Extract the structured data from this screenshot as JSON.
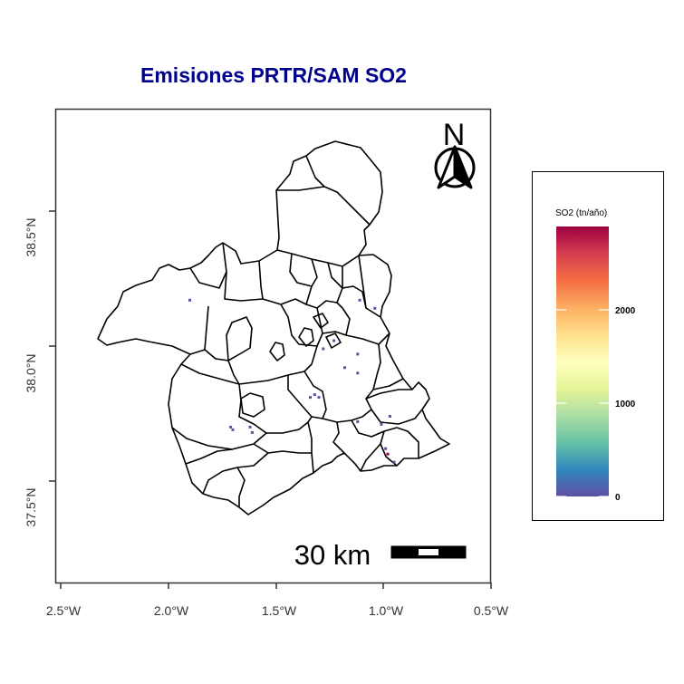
{
  "title": "Emisiones PRTR/SAM SO2",
  "axes": {
    "x_ticks": [
      "2.5°W",
      "2.0°W",
      "1.5°W",
      "1.0°W",
      "0.5°W"
    ],
    "y_ticks": [
      "37.5°N",
      "38.0°N",
      "38.5°N"
    ]
  },
  "north_arrow": {
    "label": "N",
    "icon": "north-arrow-icon"
  },
  "scale_bar": {
    "label": "30 km"
  },
  "legend": {
    "title": "SO2 (tn/año)",
    "ticks": [
      "0",
      "1000",
      "2000"
    ],
    "colors": [
      "#5e4fa2",
      "#3288bd",
      "#66c2a5",
      "#abdda4",
      "#e6f598",
      "#ffffbf",
      "#fee08b",
      "#fdae61",
      "#f46d43",
      "#d53e4f",
      "#9e0142"
    ]
  },
  "colors": {
    "title": "#00008b",
    "boundary": "#000000",
    "point_low": "#5e4fa2"
  },
  "chart_data": {
    "type": "map",
    "title": "Emisiones PRTR/SAM SO2",
    "region": "Región de Murcia (municipal boundaries)",
    "xlim": [
      -2.5,
      -0.5
    ],
    "ylim": [
      37.5,
      38.5
    ],
    "legend_title": "SO2 (tn/año)",
    "color_range": [
      0,
      2900
    ],
    "points_so2": [
      {
        "lon": -1.9,
        "lat": 38.17,
        "so2": 5
      },
      {
        "lon": -1.11,
        "lat": 38.17,
        "so2": 5
      },
      {
        "lon": -1.04,
        "lat": 38.14,
        "so2": 5
      },
      {
        "lon": -1.23,
        "lat": 38.02,
        "so2": 5
      },
      {
        "lon": -1.28,
        "lat": 37.99,
        "so2": 5
      },
      {
        "lon": -1.12,
        "lat": 37.97,
        "so2": 5
      },
      {
        "lon": -1.18,
        "lat": 37.92,
        "so2": 5
      },
      {
        "lon": -1.12,
        "lat": 37.9,
        "so2": 5
      },
      {
        "lon": -1.32,
        "lat": 37.82,
        "so2": 5
      },
      {
        "lon": -1.34,
        "lat": 37.81,
        "so2": 5
      },
      {
        "lon": -1.3,
        "lat": 37.81,
        "so2": 5
      },
      {
        "lon": -1.71,
        "lat": 37.7,
        "so2": 5
      },
      {
        "lon": -1.7,
        "lat": 37.69,
        "so2": 5
      },
      {
        "lon": -1.62,
        "lat": 37.7,
        "so2": 5
      },
      {
        "lon": -1.61,
        "lat": 37.68,
        "so2": 5
      },
      {
        "lon": -1.12,
        "lat": 37.72,
        "so2": 5
      },
      {
        "lon": -1.01,
        "lat": 37.71,
        "so2": 5
      },
      {
        "lon": -0.97,
        "lat": 37.74,
        "so2": 5
      },
      {
        "lon": -0.99,
        "lat": 37.62,
        "so2": 5
      },
      {
        "lon": -0.98,
        "lat": 37.6,
        "so2": 2900
      },
      {
        "lon": -0.95,
        "lat": 37.57,
        "so2": 5
      }
    ]
  }
}
